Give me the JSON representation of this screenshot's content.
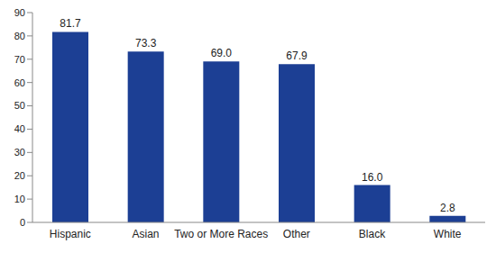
{
  "chart_data": {
    "type": "bar",
    "categories": [
      "Hispanic",
      "Asian",
      "Two or More Races",
      "Other",
      "Black",
      "White"
    ],
    "values": [
      81.7,
      73.3,
      69.0,
      67.9,
      16.0,
      2.8
    ],
    "value_labels": [
      "81.7",
      "73.3",
      "69.0",
      "67.9",
      "16.0",
      "2.8"
    ],
    "data_labels": true,
    "color": "#1c3f94",
    "ylim": [
      0,
      90
    ],
    "yticks": [
      0,
      10,
      20,
      30,
      40,
      50,
      60,
      70,
      80,
      90
    ],
    "grid": false
  }
}
